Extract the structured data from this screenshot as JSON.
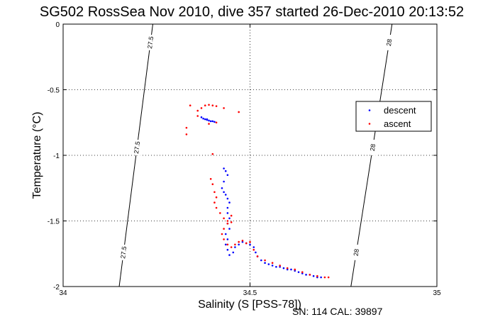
{
  "title": "SG502 RossSea Nov 2010, dive 357 started 26-Dec-2010 20:13:52",
  "footer": "SN: 114  CAL: 39897",
  "colors": {
    "descent": "#0000ff",
    "ascent": "#ff0000",
    "contour": "#000000"
  },
  "chart_data": {
    "type": "scatter",
    "xlabel": "Salinity (S [PSS-78])",
    "ylabel": "Temperature (°C)",
    "xlim": [
      34,
      35
    ],
    "ylim": [
      -2,
      0
    ],
    "xticks": [
      34,
      34.5,
      35
    ],
    "xtick_labels": [
      "34",
      "34.5",
      "35"
    ],
    "yticks": [
      0,
      -0.5,
      -1,
      -1.5,
      -2
    ],
    "ytick_labels": [
      "0",
      "-0.5",
      "-1",
      "-1.5",
      "-2"
    ],
    "grid": true,
    "legend_position": "right",
    "contours": [
      {
        "label": "27.5",
        "points": [
          [
            34.24,
            0
          ],
          [
            34.15,
            -2
          ]
        ]
      },
      {
        "label": "28",
        "points": [
          [
            34.88,
            0
          ],
          [
            34.77,
            -2
          ]
        ]
      }
    ],
    "series": [
      {
        "name": "descent",
        "marker": "point",
        "points": [
          [
            34.37,
            -0.71
          ],
          [
            34.375,
            -0.72
          ],
          [
            34.38,
            -0.725
          ],
          [
            34.385,
            -0.73
          ],
          [
            34.39,
            -0.735
          ],
          [
            34.395,
            -0.74
          ],
          [
            34.4,
            -0.74
          ],
          [
            34.405,
            -0.745
          ],
          [
            34.385,
            -0.725
          ],
          [
            34.43,
            -1.1
          ],
          [
            34.435,
            -1.12
          ],
          [
            34.44,
            -1.15
          ],
          [
            34.43,
            -1.2
          ],
          [
            34.425,
            -1.25
          ],
          [
            34.43,
            -1.28
          ],
          [
            34.435,
            -1.3
          ],
          [
            34.44,
            -1.33
          ],
          [
            34.445,
            -1.36
          ],
          [
            34.44,
            -1.4
          ],
          [
            34.44,
            -1.44
          ],
          [
            34.445,
            -1.48
          ],
          [
            34.44,
            -1.52
          ],
          [
            34.445,
            -1.56
          ],
          [
            34.435,
            -1.6
          ],
          [
            34.44,
            -1.64
          ],
          [
            34.435,
            -1.68
          ],
          [
            34.44,
            -1.72
          ],
          [
            34.445,
            -1.76
          ],
          [
            34.455,
            -1.74
          ],
          [
            34.46,
            -1.7
          ],
          [
            34.47,
            -1.68
          ],
          [
            34.48,
            -1.66
          ],
          [
            34.49,
            -1.67
          ],
          [
            34.5,
            -1.68
          ],
          [
            34.51,
            -1.7
          ],
          [
            34.515,
            -1.74
          ],
          [
            34.52,
            -1.77
          ],
          [
            34.53,
            -1.8
          ],
          [
            34.54,
            -1.82
          ],
          [
            34.55,
            -1.83
          ],
          [
            34.56,
            -1.84
          ],
          [
            34.57,
            -1.85
          ],
          [
            34.58,
            -1.85
          ],
          [
            34.59,
            -1.86
          ],
          [
            34.6,
            -1.87
          ],
          [
            34.61,
            -1.87
          ],
          [
            34.62,
            -1.88
          ],
          [
            34.63,
            -1.89
          ],
          [
            34.64,
            -1.9
          ],
          [
            34.65,
            -1.91
          ],
          [
            34.66,
            -1.91
          ],
          [
            34.67,
            -1.92
          ],
          [
            34.68,
            -1.93
          ],
          [
            34.69,
            -1.93
          ]
        ]
      },
      {
        "name": "ascent",
        "marker": "point",
        "points": [
          [
            34.34,
            -0.62
          ],
          [
            34.36,
            -0.66
          ],
          [
            34.37,
            -0.64
          ],
          [
            34.38,
            -0.62
          ],
          [
            34.39,
            -0.615
          ],
          [
            34.4,
            -0.62
          ],
          [
            34.41,
            -0.625
          ],
          [
            34.36,
            -0.7
          ],
          [
            34.33,
            -0.79
          ],
          [
            34.33,
            -0.84
          ],
          [
            34.39,
            -0.76
          ],
          [
            34.41,
            -0.75
          ],
          [
            34.43,
            -0.64
          ],
          [
            34.47,
            -0.67
          ],
          [
            34.4,
            -0.99
          ],
          [
            34.395,
            -1.18
          ],
          [
            34.4,
            -1.22
          ],
          [
            34.405,
            -1.28
          ],
          [
            34.41,
            -1.32
          ],
          [
            34.405,
            -1.36
          ],
          [
            34.41,
            -1.4
          ],
          [
            34.42,
            -1.44
          ],
          [
            34.43,
            -1.48
          ],
          [
            34.44,
            -1.5
          ],
          [
            34.45,
            -1.51
          ],
          [
            34.45,
            -1.46
          ],
          [
            34.44,
            -1.52
          ],
          [
            34.43,
            -1.56
          ],
          [
            34.425,
            -1.6
          ],
          [
            34.43,
            -1.64
          ],
          [
            34.44,
            -1.68
          ],
          [
            34.45,
            -1.7
          ],
          [
            34.46,
            -1.68
          ],
          [
            34.47,
            -1.66
          ],
          [
            34.48,
            -1.65
          ],
          [
            34.49,
            -1.67
          ],
          [
            34.5,
            -1.66
          ],
          [
            34.51,
            -1.72
          ],
          [
            34.52,
            -1.77
          ],
          [
            34.54,
            -1.8
          ],
          [
            34.56,
            -1.82
          ],
          [
            34.58,
            -1.84
          ],
          [
            34.6,
            -1.86
          ],
          [
            34.62,
            -1.87
          ],
          [
            34.64,
            -1.89
          ],
          [
            34.66,
            -1.91
          ],
          [
            34.68,
            -1.92
          ],
          [
            34.7,
            -1.93
          ],
          [
            34.71,
            -1.93
          ]
        ]
      }
    ]
  }
}
